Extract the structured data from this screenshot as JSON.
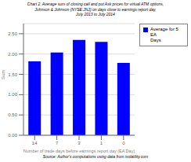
{
  "chart_data": {
    "type": "bar",
    "title": "Chart 2. Average sum of closing call and put Ask prices for virtual ATM options,\nJohnson & Johnson (NYSE:JNJ) on days close to earnings report day,\nJuly 2013 to July 2014",
    "categories": [
      "14",
      "7",
      "3",
      "1",
      "0"
    ],
    "series": [
      {
        "name": "Average for 5 EA\nDays",
        "color": "#0000ff",
        "values": [
          1.82,
          2.04,
          2.35,
          2.3,
          1.78
        ]
      }
    ],
    "xlabel": "Number of trade days before earnings report day (EA Day)",
    "ylabel": "Sum",
    "source": "Source: Author's computations using data from ivolatility.com",
    "ylim": [
      0,
      2.75
    ],
    "yticks": [
      {
        "value": 0,
        "label": "0.00"
      },
      {
        "value": 0.5,
        "label": "0.50"
      },
      {
        "value": 1,
        "label": "1.00"
      },
      {
        "value": 1.5,
        "label": "1.50"
      },
      {
        "value": 2,
        "label": "2.00"
      },
      {
        "value": 2.5,
        "label": "2.50"
      }
    ],
    "grid": true,
    "legend": "right"
  }
}
